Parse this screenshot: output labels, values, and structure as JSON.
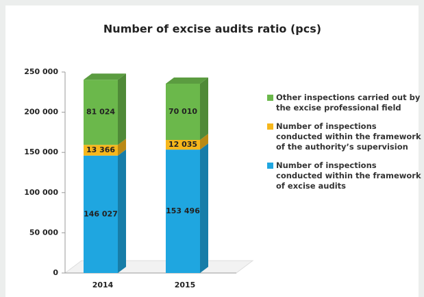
{
  "chart_data": {
    "type": "stacked_bar_3d",
    "title": "Number of excise audits ratio (pcs)",
    "categories": [
      "2014",
      "2015"
    ],
    "series": [
      {
        "name": "Number of inspections conducted within the framework of excise audits",
        "color": "#1fa6e0",
        "values": [
          146027,
          153496
        ],
        "value_labels": [
          "146 027",
          "153 496"
        ]
      },
      {
        "name": "Number of inspections conducted within the framework of the authority’s supervision",
        "color": "#f6b71c",
        "values": [
          13366,
          12035
        ],
        "value_labels": [
          "13 366",
          "12 035"
        ]
      },
      {
        "name": "Other inspections carried out by the excise professional field",
        "color": "#6bb84b",
        "values": [
          81024,
          70010
        ],
        "value_labels": [
          "81 024",
          "70 010"
        ]
      }
    ],
    "ylim": [
      0,
      250000
    ],
    "yticks": [
      0,
      {
        "value": 50000,
        "label": "50 000"
      },
      {
        "value": 100000,
        "label": "100 000"
      },
      {
        "value": 150000,
        "label": "150 000"
      },
      {
        "value": 200000,
        "label": "200 000"
      },
      {
        "value": 250000,
        "label": "250 000"
      }
    ],
    "grid": false,
    "legend": "right"
  }
}
